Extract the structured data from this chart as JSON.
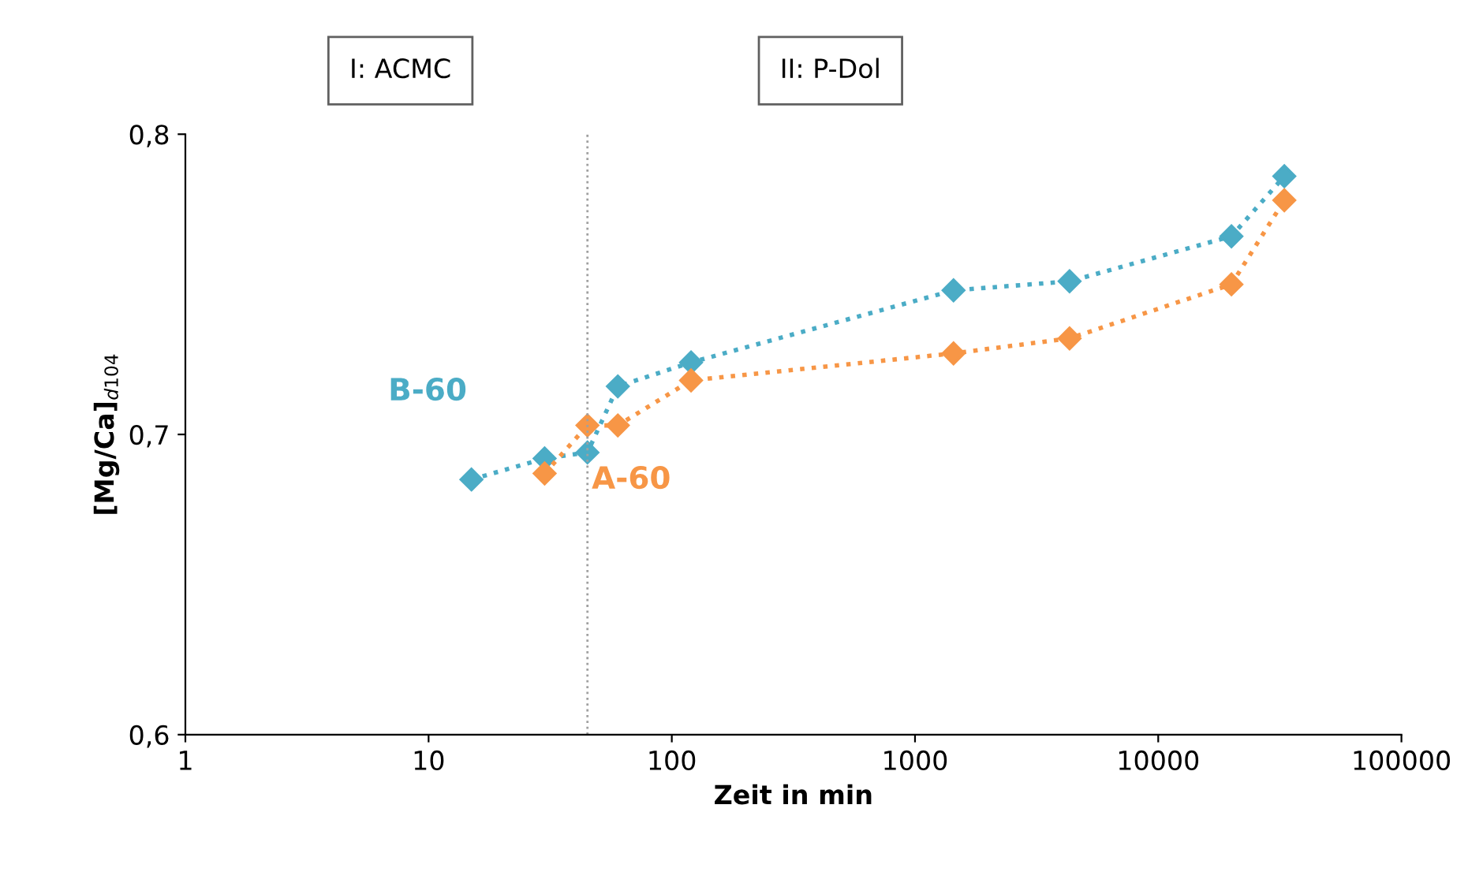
{
  "chart_data": {
    "type": "line",
    "xlabel": "Zeit in min",
    "ylabel": "[Mg/Ca]$_{d104}$",
    "log": "x",
    "xlim": [
      1,
      100000
    ],
    "xticks": [
      1,
      10,
      100,
      1000,
      10000,
      100000
    ],
    "ylim": [
      0.6,
      0.8
    ],
    "yticks": [
      {
        "value": 0.6,
        "label": "0,6"
      },
      {
        "value": 0.7,
        "label": "0,7"
      },
      {
        "value": 0.8,
        "label": "0,8"
      }
    ],
    "grid": false,
    "marker": "diamond",
    "line_style": "dotted",
    "series": [
      {
        "name": "B-60",
        "color": "#4bacc6",
        "x": [
          15,
          30,
          45,
          60,
          120,
          1440,
          4320,
          20000,
          33000
        ],
        "values": [
          0.685,
          0.692,
          0.694,
          0.716,
          0.724,
          0.748,
          0.751,
          0.766,
          0.786
        ]
      },
      {
        "name": "A-60",
        "color": "#f79646",
        "x": [
          30,
          45,
          60,
          120,
          1440,
          4320,
          20000,
          33000
        ],
        "values": [
          0.687,
          0.703,
          0.703,
          0.718,
          0.727,
          0.732,
          0.75,
          0.778
        ]
      }
    ],
    "ref_lines": [
      {
        "axis": "x",
        "value": 45,
        "color": "#a0a0a0",
        "line_style": "dotted"
      }
    ],
    "annotations": [
      "I: ACMC",
      "II: P-Dol"
    ]
  }
}
